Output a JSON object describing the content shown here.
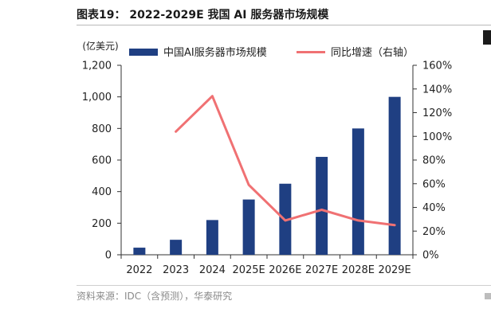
{
  "figure": {
    "title": "图表19： 2022-2029E 我国 AI 服务器市场规模",
    "source": "资料来源：IDC（含预测），华泰研究"
  },
  "chart_data": {
    "type": "bar",
    "unit_left": "(亿美元)",
    "categories": [
      "2022",
      "2023",
      "2024",
      "2025E",
      "2026E",
      "2027E",
      "2028E",
      "2029E"
    ],
    "series": [
      {
        "name": "中国AI服务器市场规模",
        "type": "bar",
        "axis": "left",
        "color": "#1f3f82",
        "values": [
          45,
          95,
          220,
          350,
          450,
          620,
          800,
          1000
        ]
      },
      {
        "name": "同比增速（右轴）",
        "type": "line",
        "axis": "right",
        "color": "#f07173",
        "values": [
          null,
          1.04,
          1.34,
          0.59,
          0.29,
          0.38,
          0.29,
          0.25
        ]
      }
    ],
    "y_left": {
      "min": 0,
      "max": 1200,
      "ticks": [
        0,
        200,
        400,
        600,
        800,
        1000,
        1200
      ],
      "tick_labels": [
        "0",
        "200",
        "400",
        "600",
        "800",
        "1,000",
        "1,200"
      ]
    },
    "y_right": {
      "min": 0,
      "max": 1.6,
      "ticks": [
        0,
        0.2,
        0.4,
        0.6,
        0.8,
        1.0,
        1.2,
        1.4,
        1.6
      ],
      "tick_labels": [
        "0%",
        "20%",
        "40%",
        "60%",
        "80%",
        "100%",
        "120%",
        "140%",
        "160%"
      ]
    },
    "legend_position": "top",
    "grid": false
  }
}
